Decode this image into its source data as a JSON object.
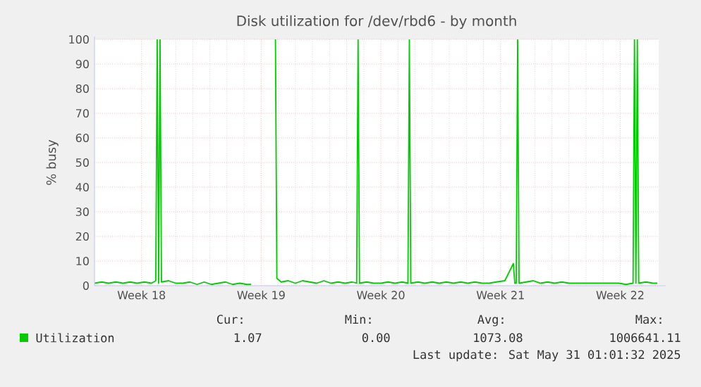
{
  "chart_data": {
    "type": "line",
    "title": "Disk utilization for /dev/rbd6 - by month",
    "ylabel": "% busy",
    "x": [
      "2025-04-28T18:00",
      "2025-04-29T04:00",
      "2025-04-29T14:00",
      "2025-04-30T00:00",
      "2025-04-30T10:00",
      "2025-04-30T20:00",
      "2025-05-01T06:00",
      "2025-05-01T16:00",
      "2025-05-02T02:00",
      "2025-05-02T08:00",
      "2025-05-02T10:00",
      "2025-05-02T12:00",
      "2025-05-02T14:00",
      "2025-05-02T16:00",
      "2025-05-03T02:00",
      "2025-05-03T12:00",
      "2025-05-03T22:00",
      "2025-05-04T08:00",
      "2025-05-04T18:00",
      "2025-05-05T04:00",
      "2025-05-05T14:00",
      "2025-05-06T00:00",
      "2025-05-06T10:00",
      "2025-05-06T20:00",
      "2025-05-07T06:00",
      "2025-05-07T16:00",
      "2025-05-07T22:00",
      "2025-05-08T00:00",
      "2025-05-09T08:00",
      "2025-05-09T10:00",
      "2025-05-09T16:00",
      "2025-05-10T02:00",
      "2025-05-10T12:00",
      "2025-05-10T22:00",
      "2025-05-11T08:00",
      "2025-05-11T18:00",
      "2025-05-12T04:00",
      "2025-05-12T14:00",
      "2025-05-13T00:00",
      "2025-05-13T10:00",
      "2025-05-13T20:00",
      "2025-05-14T02:00",
      "2025-05-14T04:00",
      "2025-05-14T06:00",
      "2025-05-14T16:00",
      "2025-05-15T02:00",
      "2025-05-15T12:00",
      "2025-05-15T22:00",
      "2025-05-16T08:00",
      "2025-05-16T18:00",
      "2025-05-17T02:00",
      "2025-05-17T04:00",
      "2025-05-17T06:00",
      "2025-05-17T16:00",
      "2025-05-18T02:00",
      "2025-05-18T12:00",
      "2025-05-18T22:00",
      "2025-05-19T08:00",
      "2025-05-19T18:00",
      "2025-05-20T04:00",
      "2025-05-20T14:00",
      "2025-05-21T00:00",
      "2025-05-21T10:00",
      "2025-05-21T20:00",
      "2025-05-22T06:00",
      "2025-05-22T18:00",
      "2025-05-23T06:00",
      "2025-05-23T08:00",
      "2025-05-23T10:00",
      "2025-05-23T12:00",
      "2025-05-23T14:00",
      "2025-05-24T00:00",
      "2025-05-24T10:00",
      "2025-05-24T20:00",
      "2025-05-25T06:00",
      "2025-05-25T16:00",
      "2025-05-26T02:00",
      "2025-05-26T12:00",
      "2025-05-26T22:00",
      "2025-05-27T08:00",
      "2025-05-27T18:00",
      "2025-05-28T04:00",
      "2025-05-28T14:00",
      "2025-05-29T00:00",
      "2025-05-29T10:00",
      "2025-05-29T20:00",
      "2025-05-30T06:00",
      "2025-05-30T08:00",
      "2025-05-30T10:00",
      "2025-05-30T12:00",
      "2025-05-30T14:00",
      "2025-05-31T00:00",
      "2025-05-31T10:00",
      "2025-05-31T16:00"
    ],
    "series": [
      {
        "name": "Utilization",
        "color": "#00cc00",
        "values": [
          1,
          1.5,
          1,
          1.5,
          1,
          1.5,
          1,
          1.5,
          1,
          2,
          100,
          1,
          100,
          1.5,
          2,
          1,
          1,
          1.5,
          0.5,
          1.5,
          0.5,
          1,
          1.5,
          0.5,
          1,
          0.5,
          0.5,
          null,
          100,
          3,
          1.5,
          2,
          1,
          2,
          1.5,
          1,
          2,
          1,
          1.5,
          1,
          1.5,
          1,
          100,
          1,
          1.5,
          1,
          1,
          1.5,
          1,
          1.5,
          1,
          100,
          1,
          1.5,
          1,
          1.5,
          1,
          1.5,
          1,
          1.5,
          1,
          1.5,
          1,
          1,
          1.5,
          2,
          9,
          1,
          1,
          100,
          1,
          1.5,
          2,
          1,
          1.5,
          1,
          1.5,
          1,
          1,
          1,
          1,
          1,
          1,
          1,
          1,
          0.5,
          1,
          100,
          1,
          100,
          1,
          1.5,
          1,
          1
        ]
      }
    ],
    "xlim": [
      "2025-04-28T18:00",
      "2025-05-31T18:00"
    ],
    "xticks": [
      {
        "value": "2025-05-01T12:00",
        "label": "Week 18"
      },
      {
        "value": "2025-05-08T12:00",
        "label": "Week 19"
      },
      {
        "value": "2025-05-15T12:00",
        "label": "Week 20"
      },
      {
        "value": "2025-05-22T12:00",
        "label": "Week 21"
      },
      {
        "value": "2025-05-29T12:00",
        "label": "Week 22"
      }
    ],
    "ylim": [
      0,
      100
    ],
    "yticks": [
      0,
      10,
      20,
      30,
      40,
      50,
      60,
      70,
      80,
      90,
      100
    ],
    "grid": true,
    "legend": "bottom",
    "marker": "none",
    "line_style": "solid",
    "annotations": [
      "Cur:",
      "Min:",
      "Avg:",
      "Max:",
      "1.07",
      "0.00",
      "1073.08",
      "1006641.11",
      "Last update: Sat May 31 01:01:32 2025"
    ]
  }
}
